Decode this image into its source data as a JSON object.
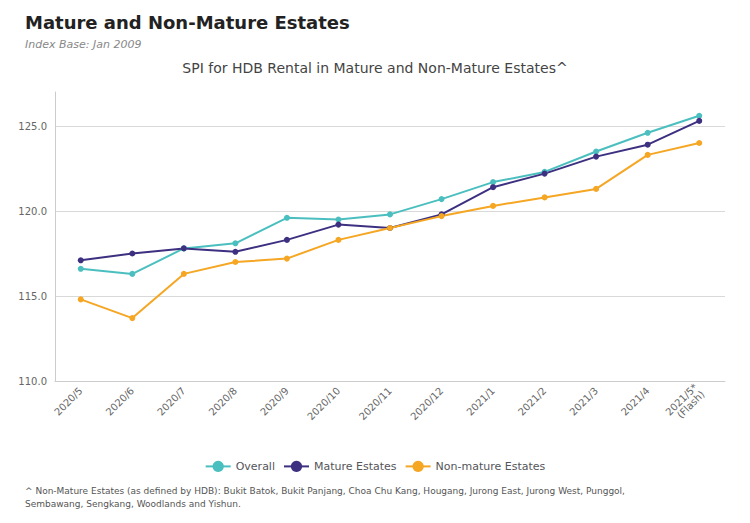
{
  "chart_data": {
    "type": "line",
    "title": "Mature and Non-Mature Estates",
    "subtitle": "Index Base: Jan 2009",
    "chart_title": "SPI for HDB Rental in Mature and Non-Mature Estates^",
    "footnote": "^ Non-Mature Estates (as defined by HDB): Bukit Batok, Bukit Panjang, Choa Chu Kang, Hougang, Jurong East, Jurong West, Punggol,\nSembawang, Sengkang, Woodlands and Yishun.",
    "categories": [
      "2020/5",
      "2020/6",
      "2020/7",
      "2020/8",
      "2020/9",
      "2020/10",
      "2020/11",
      "2020/12",
      "2021/1",
      "2021/2",
      "2021/3",
      "2021/4",
      "2021/5*\n(Flash)"
    ],
    "series": [
      {
        "name": "Overall",
        "color": "#4BBFBF",
        "values": [
          116.6,
          116.3,
          117.8,
          118.1,
          119.6,
          119.5,
          119.8,
          120.7,
          121.7,
          122.3,
          123.5,
          124.6,
          125.6
        ]
      },
      {
        "name": "Mature Estates",
        "color": "#3D3080",
        "values": [
          117.1,
          117.5,
          117.8,
          117.6,
          118.3,
          119.2,
          119.0,
          119.8,
          121.4,
          122.2,
          123.2,
          123.9,
          125.3
        ]
      },
      {
        "name": "Non-mature Estates",
        "color": "#F5A623",
        "values": [
          114.8,
          113.7,
          116.3,
          117.0,
          117.2,
          118.3,
          119.0,
          119.7,
          120.3,
          120.8,
          121.3,
          123.3,
          124.0
        ]
      }
    ],
    "ylim": [
      110.0,
      127.0
    ],
    "yticks": [
      {
        "value": 110,
        "label": "110.0"
      },
      {
        "value": 115,
        "label": "115.0"
      },
      {
        "value": 120,
        "label": "120.0"
      },
      {
        "value": 125,
        "label": "125.0"
      }
    ],
    "grid": true,
    "legend": "bottom",
    "marker": "circle"
  }
}
